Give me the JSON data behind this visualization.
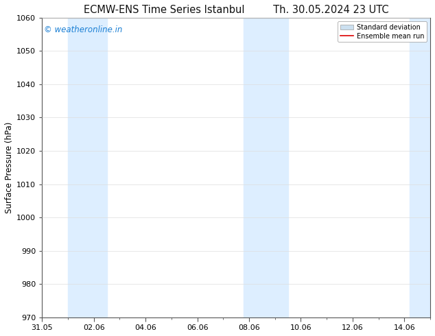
{
  "title_left": "ECMW-ENS Time Series Istanbul",
  "title_right": "Th. 30.05.2024 23 UTC",
  "ylabel": "Surface Pressure (hPa)",
  "ylim": [
    970,
    1060
  ],
  "yticks": [
    970,
    980,
    990,
    1000,
    1010,
    1020,
    1030,
    1040,
    1050,
    1060
  ],
  "xtick_labels": [
    "31.05",
    "02.06",
    "04.06",
    "06.06",
    "08.06",
    "10.06",
    "12.06",
    "14.06"
  ],
  "xtick_positions": [
    0,
    2,
    4,
    6,
    8,
    10,
    12,
    14
  ],
  "xlim": [
    0,
    15
  ],
  "shaded_bands": [
    {
      "x_start": 1.0,
      "x_end": 2.5,
      "color": "#ddeeff"
    },
    {
      "x_start": 7.8,
      "x_end": 9.5,
      "color": "#ddeeff"
    },
    {
      "x_start": 14.2,
      "x_end": 15.0,
      "color": "#ddeeff"
    }
  ],
  "watermark_text": "© weatheronline.in",
  "watermark_color": "#1a7fd4",
  "watermark_fontsize": 8.5,
  "legend_std_label": "Standard deviation",
  "legend_mean_label": "Ensemble mean run",
  "legend_std_color": "#cce0f0",
  "legend_mean_color": "#dd0000",
  "bg_color": "#ffffff",
  "axes_bg_color": "#ffffff",
  "grid_color": "#dddddd",
  "spine_color": "#555555",
  "title_fontsize": 10.5,
  "axis_label_fontsize": 8.5,
  "tick_label_fontsize": 8
}
